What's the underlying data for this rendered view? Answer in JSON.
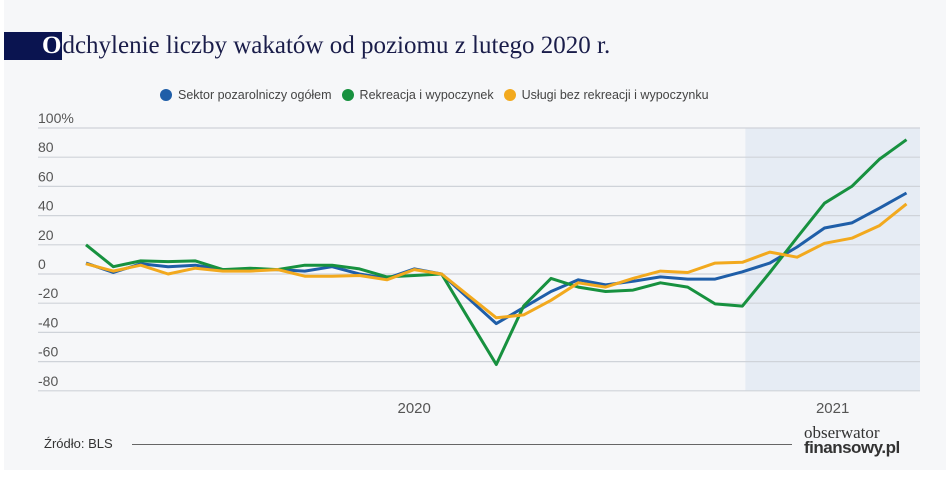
{
  "title": {
    "initial": "O",
    "rest": "dchylenie liczby wakatów od poziomu z lutego 2020 r."
  },
  "source": "Źródło: BLS",
  "logo": {
    "line1": "obserwator",
    "line2": "finansowy.pl"
  },
  "chart_data": {
    "type": "line",
    "title": "Odchylenie liczby wakatów od poziomu z lutego 2020 r.",
    "xlabel": "",
    "ylabel": "",
    "ylim": [
      -80,
      100
    ],
    "y_ticks": [
      "100%",
      "80",
      "60",
      "40",
      "20",
      "0",
      "-20",
      "-40",
      "-60",
      "-80"
    ],
    "y_tick_values": [
      100,
      80,
      60,
      40,
      20,
      0,
      -20,
      -40,
      -60,
      -80
    ],
    "x_ticks": [
      {
        "label": "2020",
        "at": 12
      },
      {
        "label": "2021",
        "at": 27.3
      }
    ],
    "highlighted_range": [
      24,
      30.5
    ],
    "grid": true,
    "legend_position": "top",
    "x": [
      0,
      1,
      2,
      3,
      4,
      5,
      6,
      7,
      8,
      9,
      10,
      11,
      12,
      13,
      14,
      15,
      16,
      17,
      18,
      19,
      20,
      21,
      22,
      23,
      24,
      25,
      26,
      27,
      28,
      29,
      30
    ],
    "series": [
      {
        "name": "Sektor pozarolniczy ogółem",
        "color": "#1f5ea8",
        "values": [
          7.5,
          1,
          7,
          5,
          6,
          3,
          3,
          3,
          2,
          5,
          0,
          -3,
          3.5,
          0,
          -17,
          -34,
          -23,
          -12,
          -4,
          -7.5,
          -5,
          -2,
          -3.5,
          -3.5,
          1.5,
          7.5,
          18.5,
          31.5,
          35,
          45,
          55.5
        ]
      },
      {
        "name": "Rekreacja i wypoczynek",
        "color": "#17913f",
        "values": [
          20,
          5,
          9,
          8.5,
          9,
          3,
          4,
          3,
          6,
          6,
          3.5,
          -2,
          -1,
          0,
          -31,
          -62,
          -22,
          -3,
          -9,
          -12,
          -11,
          -6,
          -9,
          -20.5,
          -22,
          1,
          25,
          48.5,
          60,
          78.5,
          92
        ]
      },
      {
        "name": "Usługi bez rekreacji i wypoczynku",
        "color": "#f2a91e",
        "values": [
          7,
          2,
          6,
          0,
          4,
          2,
          2,
          3,
          -1.5,
          -1.5,
          -1,
          -4,
          3,
          0,
          -15,
          -30,
          -28,
          -18,
          -6,
          -9,
          -3,
          2,
          1,
          7.5,
          8,
          15,
          11.5,
          21,
          24.5,
          33,
          48
        ]
      }
    ]
  }
}
